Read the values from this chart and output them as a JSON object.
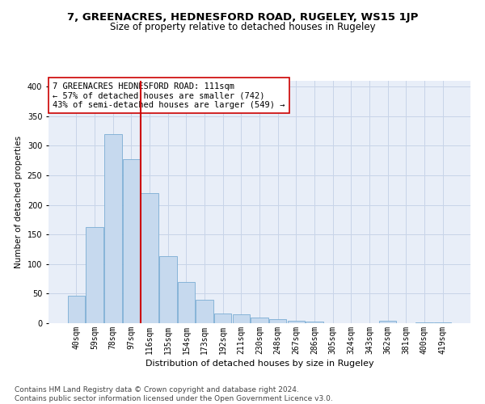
{
  "title": "7, GREENACRES, HEDNESFORD ROAD, RUGELEY, WS15 1JP",
  "subtitle": "Size of property relative to detached houses in Rugeley",
  "xlabel": "Distribution of detached houses by size in Rugeley",
  "ylabel": "Number of detached properties",
  "categories": [
    "40sqm",
    "59sqm",
    "78sqm",
    "97sqm",
    "116sqm",
    "135sqm",
    "154sqm",
    "173sqm",
    "192sqm",
    "211sqm",
    "230sqm",
    "248sqm",
    "267sqm",
    "286sqm",
    "305sqm",
    "324sqm",
    "343sqm",
    "362sqm",
    "381sqm",
    "400sqm",
    "419sqm"
  ],
  "values": [
    47,
    163,
    320,
    278,
    220,
    113,
    70,
    40,
    16,
    15,
    9,
    7,
    4,
    3,
    0,
    0,
    0,
    4,
    0,
    2,
    2
  ],
  "bar_color": "#c6d9ee",
  "bar_edgecolor": "#7aadd4",
  "vline_color": "#cc0000",
  "vline_position": 3.5,
  "annotation_text": "7 GREENACRES HEDNESFORD ROAD: 111sqm\n← 57% of detached houses are smaller (742)\n43% of semi-detached houses are larger (549) →",
  "annotation_box_color": "white",
  "annotation_box_edgecolor": "#cc0000",
  "ylim": [
    0,
    410
  ],
  "yticks": [
    0,
    50,
    100,
    150,
    200,
    250,
    300,
    350,
    400
  ],
  "grid_color": "#c8d4e8",
  "background_color": "#e8eef8",
  "footer": "Contains HM Land Registry data © Crown copyright and database right 2024.\nContains public sector information licensed under the Open Government Licence v3.0.",
  "title_fontsize": 9.5,
  "subtitle_fontsize": 8.5,
  "xlabel_fontsize": 8,
  "ylabel_fontsize": 7.5,
  "tick_fontsize": 7,
  "annotation_fontsize": 7.5,
  "footer_fontsize": 6.5
}
